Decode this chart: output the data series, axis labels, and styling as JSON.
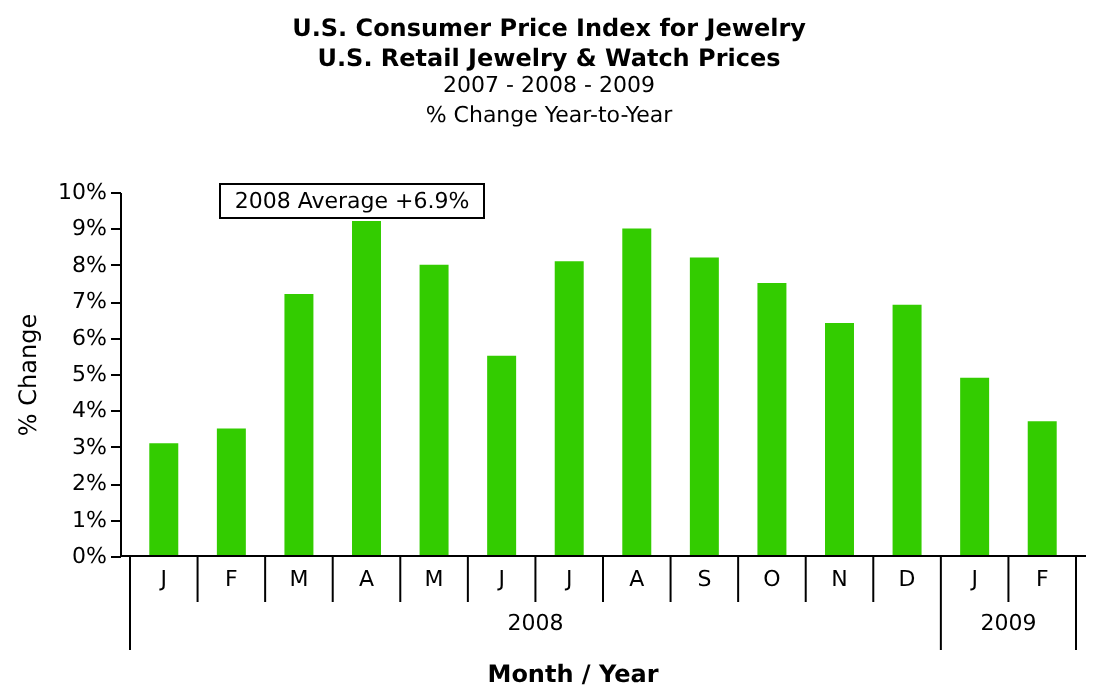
{
  "chart_data": {
    "type": "bar",
    "title": "U.S. Consumer Price Index for Jewelry\nU.S. Retail Jewelry & Watch Prices",
    "subtitle": "2007 - 2008 - 2009\n% Change Year-to-Year",
    "xlabel": "Month / Year",
    "ylabel": "% Change",
    "categories": [
      "J",
      "F",
      "M",
      "A",
      "M",
      "J",
      "J",
      "A",
      "S",
      "O",
      "N",
      "D",
      "J",
      "F"
    ],
    "values": [
      3.1,
      3.5,
      7.2,
      9.2,
      8.0,
      5.5,
      8.1,
      9.0,
      8.2,
      7.5,
      6.4,
      6.9,
      4.9,
      3.7
    ],
    "color": "#33cc00",
    "ylim": [
      0,
      10
    ],
    "yticks": [
      {
        "value": 0,
        "label": "0%"
      },
      {
        "value": 1,
        "label": "1%"
      },
      {
        "value": 2,
        "label": "2%"
      },
      {
        "value": 3,
        "label": "3%"
      },
      {
        "value": 4,
        "label": "4%"
      },
      {
        "value": 5,
        "label": "5%"
      },
      {
        "value": 6,
        "label": "6%"
      },
      {
        "value": 7,
        "label": "7%"
      },
      {
        "value": 8,
        "label": "8%"
      },
      {
        "value": 9,
        "label": "9%"
      },
      {
        "value": 10,
        "label": "10%"
      }
    ],
    "annotations": [
      "2008 Average +6.9%",
      "2008",
      "2009"
    ],
    "grid": false
  }
}
